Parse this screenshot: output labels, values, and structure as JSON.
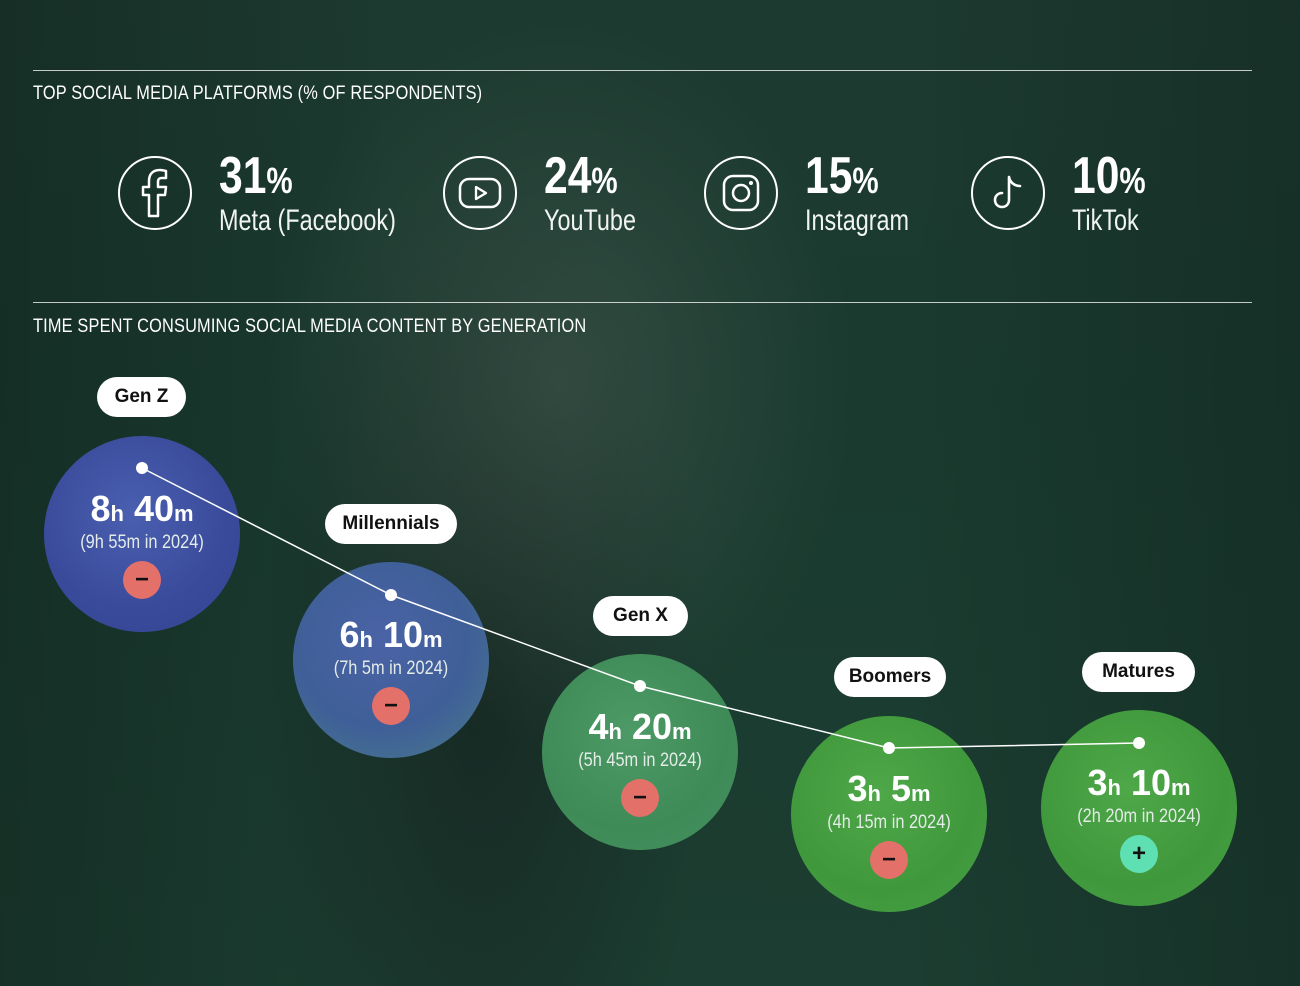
{
  "platforms_section": {
    "title": "TOP SOCIAL MEDIA PLATFORMS (% OF RESPONDENTS)",
    "items": [
      {
        "value": "31",
        "unit": "%",
        "name": "Meta (Facebook)",
        "icon": "facebook-icon"
      },
      {
        "value": "24",
        "unit": "%",
        "name": "YouTube",
        "icon": "youtube-icon"
      },
      {
        "value": "15",
        "unit": "%",
        "name": "Instagram",
        "icon": "instagram-icon"
      },
      {
        "value": "10",
        "unit": "%",
        "name": "TikTok",
        "icon": "tiktok-icon"
      }
    ]
  },
  "time_section": {
    "title": "TIME SPENT CONSUMING SOCIAL MEDIA CONTENT BY GENERATION",
    "generations": [
      {
        "label": "Gen Z",
        "hours": "8",
        "minutes": "40",
        "previous": "(9h 55m in 2024)",
        "change": "−",
        "change_color": "#e4706a"
      },
      {
        "label": "Millennials",
        "hours": "6",
        "minutes": "10",
        "previous": "(7h 5m in 2024)",
        "change": "−",
        "change_color": "#e4706a"
      },
      {
        "label": "Gen X",
        "hours": "4",
        "minutes": "20",
        "previous": "(5h 45m in 2024)",
        "change": "−",
        "change_color": "#e4706a"
      },
      {
        "label": "Boomers",
        "hours": "3",
        "minutes": "5",
        "previous": "(4h 15m in 2024)",
        "change": "−",
        "change_color": "#e4706a"
      },
      {
        "label": "Matures",
        "hours": "3",
        "minutes": "10",
        "previous": "(2h 20m in 2024)",
        "change": "+",
        "change_color": "#5ee0b3"
      }
    ],
    "units": {
      "hours": "h",
      "minutes": "m"
    }
  }
}
